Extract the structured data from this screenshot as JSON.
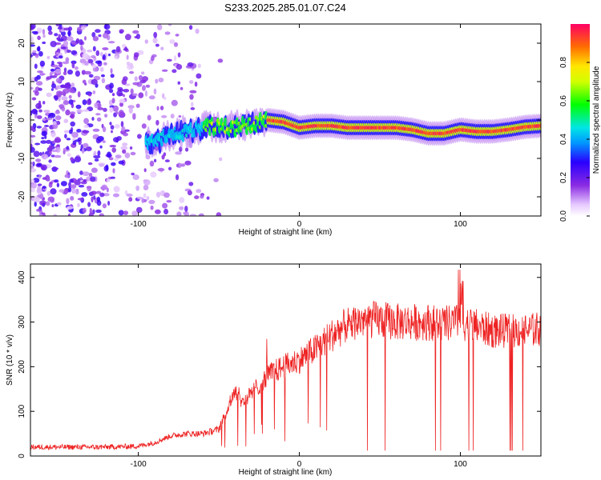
{
  "title": "S233.2025.285.01.07.C24",
  "chart_data": [
    {
      "type": "heatmap",
      "title": "S233.2025.285.01.07.C24",
      "xlabel": "Height of straight line (km)",
      "ylabel": "Frequency (Hz)",
      "xlim": [
        -167,
        150
      ],
      "ylim": [
        -25,
        25
      ],
      "xticks": [
        -100,
        0,
        100
      ],
      "yticks": [
        -20,
        -10,
        0,
        10,
        20
      ],
      "colorbar": {
        "label": "Normalized spectral amplitude",
        "range": [
          0,
          1
        ],
        "ticks": [
          "0.0",
          "0.2",
          "0.4",
          "0.6",
          "0.8"
        ],
        "tick_values": [
          0.0,
          0.2,
          0.4,
          0.6,
          0.8
        ]
      },
      "signal_ridge": {
        "description_x_km": [
          -90,
          -80,
          -70,
          -60,
          -50,
          -40,
          -30,
          -20,
          -10,
          0,
          10,
          20,
          30,
          40,
          50,
          60,
          70,
          80,
          90,
          100,
          110,
          120,
          130,
          140,
          150
        ],
        "frequency_hz": [
          -6,
          -4,
          -3,
          -2,
          -1.5,
          -2,
          -1,
          0,
          -0.5,
          -2,
          -1.5,
          -1.5,
          -2,
          -2,
          -2,
          -2,
          -2.5,
          -3.5,
          -3.5,
          -2.5,
          -3,
          -3,
          -2.5,
          -1.8,
          -1.5
        ]
      }
    },
    {
      "type": "line",
      "xlabel": "Height of straight line (km)",
      "ylabel": "SNR (10 * v/v)",
      "xlim": [
        -167,
        150
      ],
      "ylim": [
        0,
        430
      ],
      "xticks": [
        -100,
        0,
        100
      ],
      "yticks": [
        0,
        100,
        200,
        300,
        400
      ],
      "series": [
        {
          "name": "SNR",
          "color": "#ee2222",
          "x": [
            -167,
            -140,
            -120,
            -100,
            -90,
            -80,
            -70,
            -60,
            -50,
            -45,
            -40,
            -35,
            -30,
            -25,
            -20,
            -10,
            0,
            10,
            20,
            30,
            40,
            50,
            60,
            70,
            80,
            90,
            100,
            110,
            120,
            130,
            140,
            150
          ],
          "values": [
            20,
            20,
            20,
            22,
            30,
            45,
            50,
            50,
            60,
            100,
            150,
            120,
            140,
            160,
            180,
            200,
            215,
            240,
            270,
            295,
            305,
            305,
            300,
            300,
            300,
            295,
            300,
            290,
            280,
            280,
            280,
            285
          ]
        }
      ]
    }
  ]
}
